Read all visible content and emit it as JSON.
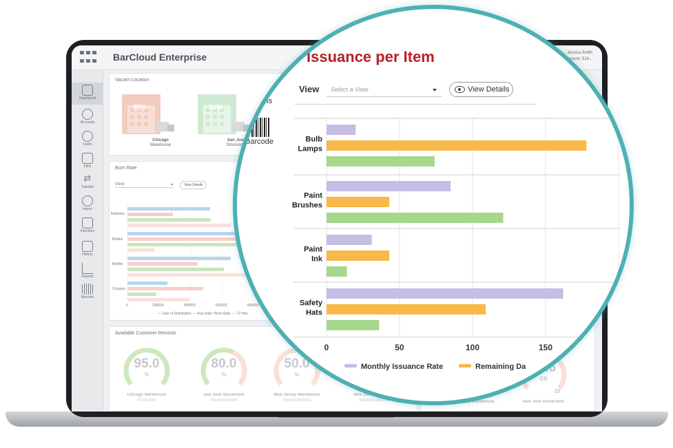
{
  "app": {
    "title": "BarCloud Enterprise",
    "user_line1": "Jessica Smith",
    "user_line2": "Account: 514..."
  },
  "sidebar": {
    "items": [
      {
        "label": "Dashboard",
        "icon": "home-icon"
      },
      {
        "label": "Accounts",
        "icon": "accounts-icon"
      },
      {
        "label": "Users",
        "icon": "users-icon"
      },
      {
        "label": "Files",
        "icon": "files-icon"
      },
      {
        "label": "Transfer",
        "icon": "transfer-icon"
      },
      {
        "label": "Import",
        "icon": "import-icon"
      },
      {
        "label": "Inventory",
        "icon": "inventory-icon"
      },
      {
        "label": "History",
        "icon": "history-icon"
      },
      {
        "label": "Reports",
        "icon": "reports-icon"
      },
      {
        "label": "Barcode",
        "icon": "barcode-icon"
      }
    ]
  },
  "vacant": {
    "title": "Vacant Location",
    "warehouses": [
      {
        "pct": "95%",
        "name": "Chicago",
        "sub": "Warehouse",
        "color": "#e9a389"
      },
      {
        "pct": "50%",
        "name": "San Jose",
        "sub": "Stockroom",
        "color": "#a8d9ae"
      }
    ],
    "side_labels": [
      "rts",
      "Barcode"
    ]
  },
  "burn": {
    "title": "Burn Rate",
    "view_label": "View:",
    "view_btn": "View Details",
    "row_labels": [
      "Batteries",
      "Bottles",
      "Bottles",
      "Chopper"
    ],
    "x_ticks": [
      "0",
      "200000",
      "400000",
      "600000",
      "800000"
    ],
    "legend": [
      "Sum of Distribution",
      "Avg Daily / Burn Rate",
      "72 Hou"
    ]
  },
  "records": {
    "title": "Available Customer Records",
    "gauges": [
      {
        "value": "95.0",
        "unit": "%",
        "label": "Chicago Warehouse",
        "sub": "4120/10000"
      },
      {
        "value": "80.0",
        "unit": "%",
        "label": "San Jose Stockroom",
        "sub": "2000000/1000000"
      },
      {
        "value": "50.0",
        "unit": "%",
        "label": "New Jersey Warehouse",
        "sub": "6000000/1000000"
      },
      {
        "value": "",
        "unit": "",
        "label": "New York Stockroom",
        "sub": "5000000/10000000"
      }
    ],
    "right_gauges": [
      {
        "value": "15.6",
        "unit": "GB",
        "num": "20",
        "label": "New York Stockroom"
      },
      {
        "value": "",
        "unit": "",
        "num": "20",
        "label": "New Jersey Warehouse"
      }
    ]
  },
  "issuance": {
    "title": "Issuance per Item",
    "view_label": "View",
    "select_placeholder": "Select a View",
    "view_details": "View Details"
  },
  "chart_data": {
    "type": "bar",
    "orientation": "horizontal",
    "title": "Issuance per Item",
    "categories": [
      "Bulb Lamps",
      "Paint Brushes",
      "Paint Ink",
      "Safety Hats"
    ],
    "category_lines": [
      [
        "Bulb",
        "Lamps"
      ],
      [
        "Paint",
        "Brushes"
      ],
      [
        "Paint",
        "Ink"
      ],
      [
        "Safety",
        "Hats"
      ]
    ],
    "series": [
      {
        "name": "Monthly Issuance Rate",
        "color": "#c5bde3",
        "values": [
          20,
          85,
          31,
          162
        ]
      },
      {
        "name": "Remaining Days",
        "legend_text": "Remaining Da",
        "color": "#fbb84a",
        "values": [
          178,
          43,
          43,
          109
        ]
      },
      {
        "name": "",
        "color": "#a7d78a",
        "values": [
          74,
          121,
          14,
          36
        ]
      }
    ],
    "x_ticks": [
      0,
      50,
      100,
      150
    ],
    "xlim": [
      0,
      200
    ],
    "grid": true
  }
}
